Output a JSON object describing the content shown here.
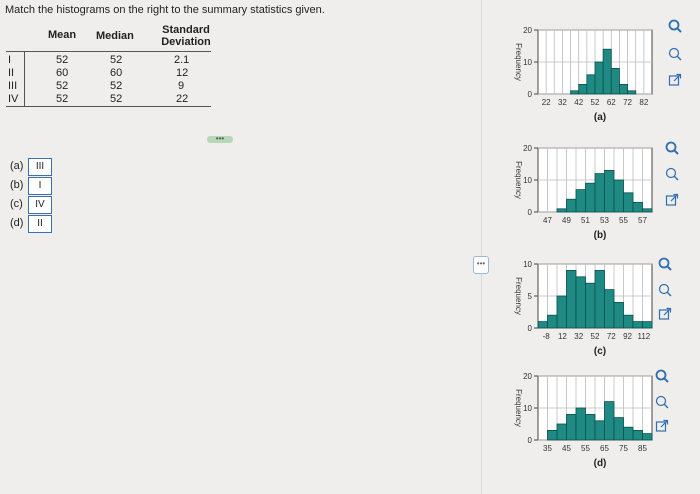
{
  "instruction": "Match the histograms on the right to the summary statistics given.",
  "stats_table": {
    "headers": [
      "Mean",
      "Median",
      "Standard Deviation"
    ],
    "rows": [
      {
        "label": "I",
        "mean": "52",
        "median": "52",
        "sd": "2.1"
      },
      {
        "label": "II",
        "mean": "60",
        "median": "60",
        "sd": "12"
      },
      {
        "label": "III",
        "mean": "52",
        "median": "52",
        "sd": "9"
      },
      {
        "label": "IV",
        "mean": "52",
        "median": "52",
        "sd": "22"
      }
    ]
  },
  "matches": [
    {
      "label": "(a)",
      "value": "III"
    },
    {
      "label": "(b)",
      "value": "I"
    },
    {
      "label": "(c)",
      "value": "IV"
    },
    {
      "label": "(d)",
      "value": "II"
    }
  ],
  "divider_button": "•••",
  "panel_handle": "•••",
  "colors": {
    "bar_fill": "#1f8a83",
    "bar_stroke": "#0d4f4b",
    "link_blue": "#2f6fb0"
  },
  "chart_data": [
    {
      "type": "bar",
      "caption": "(a)",
      "ylabel": "Frequency",
      "x_ticks": [
        "22",
        "32",
        "42",
        "52",
        "62",
        "72",
        "82"
      ],
      "y_ticks": [
        "0",
        "10",
        "20"
      ],
      "ylim": [
        0,
        20
      ],
      "values": [
        0,
        0,
        0,
        0,
        1,
        3,
        6,
        10,
        14,
        8,
        3,
        1,
        0,
        0
      ]
    },
    {
      "type": "bar",
      "caption": "(b)",
      "ylabel": "Frequency",
      "x_ticks": [
        "47",
        "49",
        "51",
        "53",
        "55",
        "57"
      ],
      "y_ticks": [
        "0",
        "10",
        "20"
      ],
      "ylim": [
        0,
        20
      ],
      "values": [
        0,
        0,
        1,
        4,
        7,
        9,
        12,
        13,
        10,
        6,
        3,
        1
      ]
    },
    {
      "type": "bar",
      "caption": "(c)",
      "ylabel": "Frequency",
      "x_ticks": [
        "-8",
        "12",
        "32",
        "52",
        "72",
        "92",
        "112"
      ],
      "y_ticks": [
        "0",
        "5",
        "10"
      ],
      "ylim": [
        0,
        10
      ],
      "values": [
        1,
        2,
        5,
        9,
        8,
        7,
        9,
        6,
        4,
        2,
        1,
        1
      ]
    },
    {
      "type": "bar",
      "caption": "(d)",
      "ylabel": "Frequency",
      "x_ticks": [
        "35",
        "45",
        "55",
        "65",
        "75",
        "85"
      ],
      "y_ticks": [
        "0",
        "10",
        "20"
      ],
      "ylim": [
        0,
        20
      ],
      "values": [
        0,
        3,
        5,
        8,
        10,
        8,
        6,
        12,
        7,
        4,
        3,
        2
      ]
    }
  ]
}
